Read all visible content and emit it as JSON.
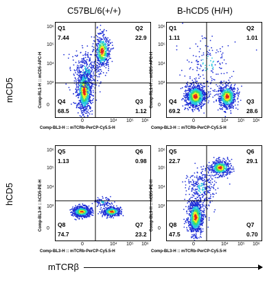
{
  "columns": [
    "C57BL/6(+/+)",
    "B-hCD5 (H/H)"
  ],
  "rows": [
    "mCD5",
    "hCD5"
  ],
  "x_axis_label": "mTCRβ",
  "x_ticks": [
    "0",
    "10⁴",
    "10⁵",
    "10⁶"
  ],
  "y_ticks_top": [
    "10⁶",
    "10⁵",
    "10⁴",
    "10³",
    "0"
  ],
  "y_ticks_bottom": [
    "10⁶",
    "10⁵",
    "10⁴",
    "10³",
    "0"
  ],
  "quadrant_names": [
    "Q1",
    "Q2",
    "Q3",
    "Q4"
  ],
  "quadrant_names_bottom": [
    "Q5",
    "Q6",
    "Q7",
    "Q8"
  ],
  "chart_data": [
    {
      "type": "scatter",
      "column": "C57BL/6(+/+)",
      "row": "mCD5",
      "xlabel": "Comp-BL3-H :: mTCRb-PerCP-Cy5.5-H",
      "ylabel": "Comp-RL1-H :: mCD5-APC-H",
      "quadrants": {
        "Q1": "7.44",
        "Q2": "22.9",
        "Q3": "1.12",
        "Q4": "68.5"
      }
    },
    {
      "type": "scatter",
      "column": "B-hCD5 (H/H)",
      "row": "mCD5",
      "xlabel": "Comp-BL3-H :: mTCRb-PerCP-Cy5.5-H",
      "ylabel": "Comp-RL1-H :: mCD5-APC-H",
      "quadrants": {
        "Q1": "1.11",
        "Q2": "1.01",
        "Q3": "28.6",
        "Q4": "69.2"
      }
    },
    {
      "type": "scatter",
      "column": "C57BL/6(+/+)",
      "row": "hCD5",
      "xlabel": "Comp-BL3-H :: mTCRb-PerCP-Cy5.5-H",
      "ylabel": "Comp-BL3-H :: hCD5-PE-H",
      "quadrants": {
        "Q5": "1.13",
        "Q6": "0.98",
        "Q7": "23.2",
        "Q8": "74.7"
      }
    },
    {
      "type": "scatter",
      "column": "B-hCD5 (H/H)",
      "row": "hCD5",
      "xlabel": "Comp-BL3-H :: mTCRb-PerCP-Cy5.5-H",
      "ylabel": "Comp-BL3-H :: hCD5-PE-H",
      "quadrants": {
        "Q5": "22.7",
        "Q6": "29.1",
        "Q7": "0.70",
        "Q8": "47.5"
      }
    }
  ],
  "colors": {
    "low": "#1f2fd6",
    "mid": "#26c4e0",
    "midhigh": "#38e06a",
    "high": "#f2e824",
    "peak": "#e6231b"
  }
}
